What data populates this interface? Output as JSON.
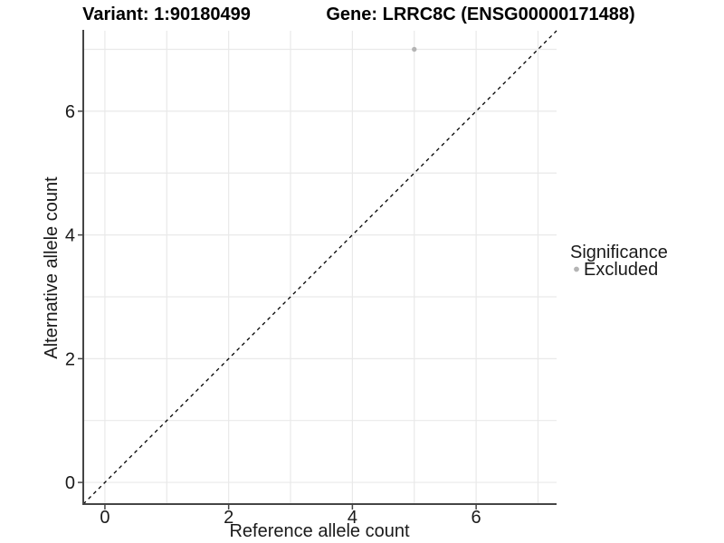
{
  "titles": {
    "variant": "Variant: 1:90180499",
    "gene": "Gene: LRRC8C (ENSG00000171488)"
  },
  "chart_data": {
    "type": "scatter",
    "title": "Variant: 1:90180499 | Gene: LRRC8C (ENSG00000171488)",
    "xlabel": "Reference allele count",
    "ylabel": "Alternative allele count",
    "xlim": [
      -0.35,
      7.3
    ],
    "ylim": [
      -0.35,
      7.3
    ],
    "x_ticks": [
      0,
      2,
      4,
      6
    ],
    "y_ticks": [
      0,
      2,
      4,
      6
    ],
    "grid_values": [
      0,
      1,
      2,
      3,
      4,
      5,
      6,
      7
    ],
    "grid": "on",
    "series": [
      {
        "name": "Excluded",
        "color": "#b4b4b4",
        "points": [
          {
            "x": 5,
            "y": 7
          }
        ]
      }
    ],
    "ref_line": {
      "equation": "y = x",
      "style": "dashed",
      "color": "#000000",
      "from": [
        -0.35,
        -0.35
      ],
      "to": [
        7.3,
        7.3
      ]
    },
    "legend": {
      "position": "right",
      "title": "Significance",
      "entries": [
        {
          "label": "Excluded",
          "color": "#b4b4b4"
        }
      ]
    }
  },
  "colors": {
    "background": "#ffffff",
    "grid": "#e9e9e9",
    "axis": "#454545",
    "tick_text": "#1a1a1a",
    "title_text": "#000000",
    "point": "#b4b4b4",
    "ref_line": "#000000"
  }
}
